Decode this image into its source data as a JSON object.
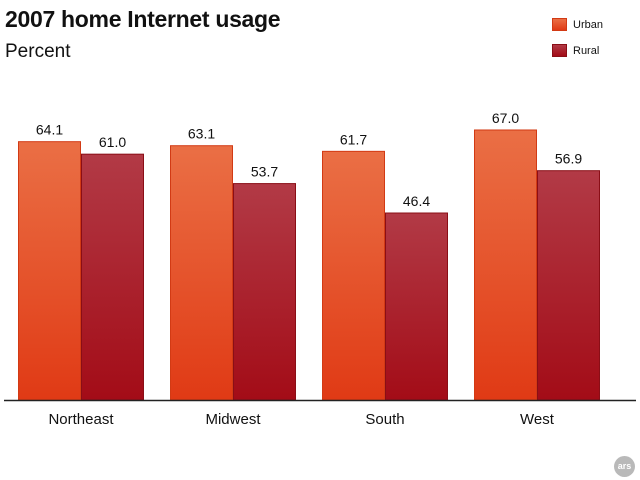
{
  "chart_data": {
    "type": "bar",
    "title": "2007 home Internet usage",
    "subtitle": "Percent",
    "xlabel": "",
    "ylabel": "",
    "ylim": [
      0,
      100
    ],
    "grid": false,
    "legend_position": "top-right",
    "categories": [
      "Northeast",
      "Midwest",
      "South",
      "West"
    ],
    "series": [
      {
        "name": "Urban",
        "values": [
          64.1,
          63.1,
          61.7,
          67.0
        ],
        "color_top": "#ea6f45",
        "color_bottom": "#e03a15",
        "stroke": "#d23a14"
      },
      {
        "name": "Rural",
        "values": [
          61.0,
          53.7,
          46.4,
          56.9
        ],
        "color_top": "#b23a46",
        "color_bottom": "#a30c17",
        "stroke": "#8a0e16"
      }
    ]
  },
  "badge_text": "ars"
}
